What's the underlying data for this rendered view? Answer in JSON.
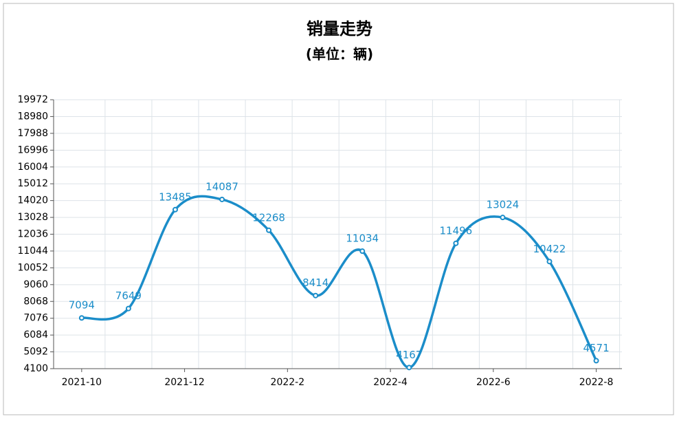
{
  "chart_data": {
    "type": "line",
    "title": "销量走势",
    "subtitle": "(单位：辆)",
    "x": [
      0,
      1,
      2,
      3,
      4,
      5,
      6,
      7,
      8,
      9,
      10,
      11
    ],
    "xlim": [
      -0.6,
      11.55
    ],
    "xticks": [
      {
        "value": 0,
        "label": "2021-10"
      },
      {
        "value": 2.2,
        "label": "2021-12"
      },
      {
        "value": 4.4,
        "label": "2022-2"
      },
      {
        "value": 6.6,
        "label": "2022-4"
      },
      {
        "value": 8.8,
        "label": "2022-6"
      },
      {
        "value": 11,
        "label": "2022-8"
      }
    ],
    "series": [
      {
        "name": "销量",
        "color": "#1b8dc9",
        "values": [
          7094,
          7649,
          13485,
          14087,
          12268,
          8414,
          11034,
          4167,
          11496,
          13024,
          10422,
          4571
        ]
      }
    ],
    "ylim": [
      4100,
      19972
    ],
    "yticks": [
      4100,
      5092,
      6084,
      7076,
      8068,
      9060,
      10052,
      11044,
      12036,
      13028,
      14020,
      15012,
      16004,
      16996,
      17988,
      18980,
      19972
    ],
    "grid": true
  }
}
